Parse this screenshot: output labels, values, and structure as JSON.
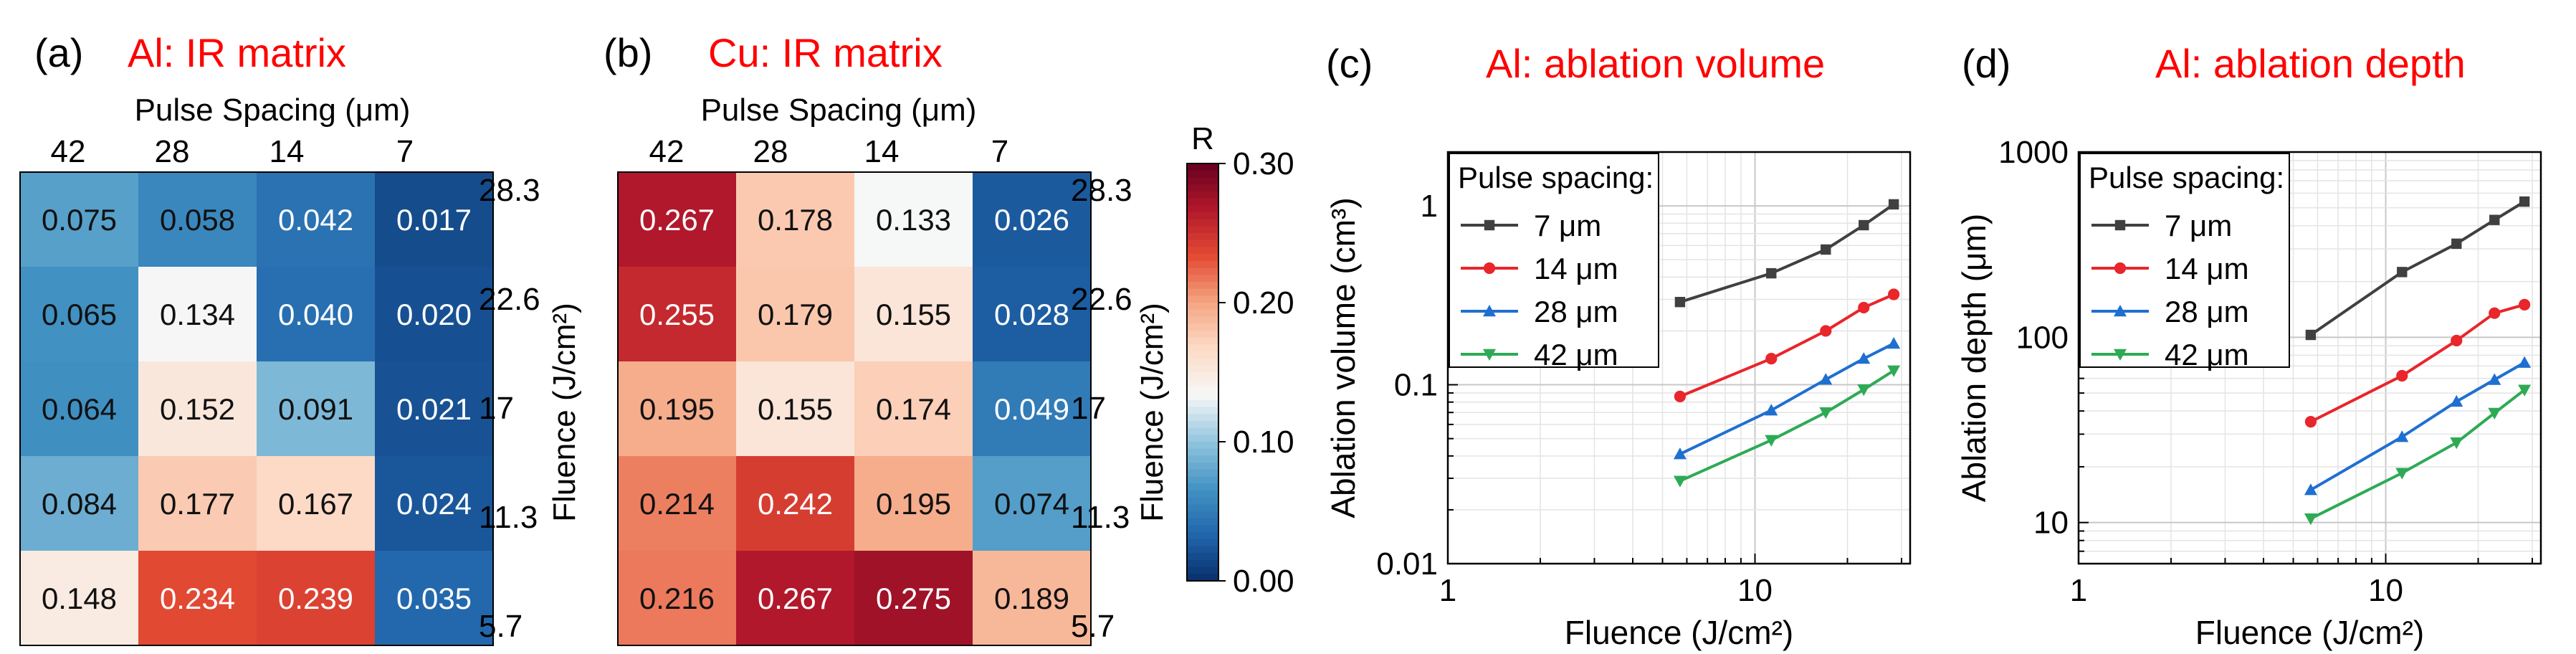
{
  "colors": {
    "title": "#ff0000",
    "cmap": [
      "#08306b",
      "#2166ac",
      "#4393c3",
      "#92c5de",
      "#f7f7f7",
      "#fddbc7",
      "#f4a582",
      "#e34a33",
      "#b2182b",
      "#67001f"
    ],
    "series": [
      "#404040",
      "#e8262b",
      "#1f6fd1",
      "#2eaa55"
    ]
  },
  "panels": [
    {
      "label": "(a)",
      "title": "Al: IR matrix",
      "xlabel": "Pulse Spacing (μm)",
      "ylabel": "Fluence (J/cm²)",
      "columns": [
        "42",
        "28",
        "14",
        "7"
      ],
      "rows": [
        "28.3",
        "22.6",
        "17",
        "11.3",
        "5.7"
      ],
      "values": [
        [
          "0.075",
          "0.058",
          "0.042",
          "0.017"
        ],
        [
          "0.065",
          "0.134",
          "0.040",
          "0.020"
        ],
        [
          "0.064",
          "0.152",
          "0.091",
          "0.021"
        ],
        [
          "0.084",
          "0.177",
          "0.167",
          "0.024"
        ],
        [
          "0.148",
          "0.234",
          "0.239",
          "0.035"
        ]
      ]
    },
    {
      "label": "(b)",
      "title": "Cu: IR matrix",
      "xlabel": "Pulse Spacing (μm)",
      "ylabel": "Fluence (J/cm²)",
      "columns": [
        "42",
        "28",
        "14",
        "7"
      ],
      "rows": [
        "28.3",
        "22.6",
        "17",
        "11.3",
        "5.7"
      ],
      "values": [
        [
          "0.267",
          "0.178",
          "0.133",
          "0.026"
        ],
        [
          "0.255",
          "0.179",
          "0.155",
          "0.028"
        ],
        [
          "0.195",
          "0.155",
          "0.174",
          "0.049"
        ],
        [
          "0.214",
          "0.242",
          "0.195",
          "0.074"
        ],
        [
          "0.216",
          "0.267",
          "0.275",
          "0.189"
        ]
      ]
    },
    {
      "label": "(c)",
      "title": "Al: ablation volume"
    },
    {
      "label": "(d)",
      "title": "Al: ablation depth"
    }
  ],
  "colorbar": {
    "label": "R",
    "min": 0.0,
    "max": 0.3,
    "ticks": [
      "0.00",
      "0.10",
      "0.20",
      "0.30"
    ]
  },
  "chart_data": [
    {
      "type": "heatmap",
      "title": "Al: IR matrix",
      "xlabel": "Pulse Spacing (μm)",
      "ylabel": "Fluence (J/cm²)",
      "x": [
        42,
        28,
        14,
        7
      ],
      "y": [
        28.3,
        22.6,
        17,
        11.3,
        5.7
      ],
      "z": [
        [
          0.075,
          0.058,
          0.042,
          0.017
        ],
        [
          0.065,
          0.134,
          0.04,
          0.02
        ],
        [
          0.064,
          0.152,
          0.091,
          0.021
        ],
        [
          0.084,
          0.177,
          0.167,
          0.024
        ],
        [
          0.148,
          0.234,
          0.239,
          0.035
        ]
      ],
      "zlim": [
        0,
        0.3
      ]
    },
    {
      "type": "heatmap",
      "title": "Cu: IR matrix",
      "xlabel": "Pulse Spacing (μm)",
      "ylabel": "Fluence (J/cm²)",
      "x": [
        42,
        28,
        14,
        7
      ],
      "y": [
        28.3,
        22.6,
        17,
        11.3,
        5.7
      ],
      "z": [
        [
          0.267,
          0.178,
          0.133,
          0.026
        ],
        [
          0.255,
          0.179,
          0.155,
          0.028
        ],
        [
          0.195,
          0.155,
          0.174,
          0.049
        ],
        [
          0.214,
          0.242,
          0.195,
          0.074
        ],
        [
          0.216,
          0.267,
          0.275,
          0.189
        ]
      ],
      "zlim": [
        0,
        0.3
      ]
    },
    {
      "type": "line",
      "title": "Al: ablation volume",
      "xlabel": "Fluence (J/cm²)",
      "ylabel": "Ablation volume (cm³)",
      "xscale": "log",
      "yscale": "log",
      "xlim": [
        1,
        32
      ],
      "ylim": [
        0.01,
        2
      ],
      "xticks": [
        1,
        10
      ],
      "xtick_labels": [
        "1",
        "10"
      ],
      "yticks": [
        0.01,
        0.1,
        1
      ],
      "ytick_labels": [
        "0.01",
        "0.1",
        "1"
      ],
      "legend_title": "Pulse spacing:",
      "legend_position": "top-left",
      "x": [
        5.7,
        11.3,
        17,
        22.6,
        28.3
      ],
      "series": [
        {
          "name": "7 μm",
          "marker": "square",
          "values": [
            0.29,
            0.42,
            0.57,
            0.78,
            1.02
          ]
        },
        {
          "name": "14 μm",
          "marker": "circle",
          "values": [
            0.086,
            0.14,
            0.2,
            0.27,
            0.32
          ]
        },
        {
          "name": "28 μm",
          "marker": "triangle-up",
          "values": [
            0.041,
            0.072,
            0.107,
            0.14,
            0.17
          ]
        },
        {
          "name": "42 μm",
          "marker": "triangle-down",
          "values": [
            0.029,
            0.049,
            0.07,
            0.094,
            0.12
          ]
        }
      ]
    },
    {
      "type": "line",
      "title": "Al: ablation depth",
      "xlabel": "Fluence (J/cm²)",
      "ylabel": "Ablation depth (μm)",
      "xscale": "log",
      "yscale": "log",
      "xlim": [
        1,
        32
      ],
      "ylim": [
        6,
        1000
      ],
      "xticks": [
        1,
        10
      ],
      "xtick_labels": [
        "1",
        "10"
      ],
      "yticks": [
        10,
        100,
        1000
      ],
      "ytick_labels": [
        "10",
        "100",
        "1000"
      ],
      "legend_title": "Pulse spacing:",
      "legend_position": "top-left",
      "x": [
        5.7,
        11.3,
        17,
        22.6,
        28.3
      ],
      "series": [
        {
          "name": "7 μm",
          "marker": "square",
          "values": [
            103,
            225,
            320,
            430,
            540
          ]
        },
        {
          "name": "14 μm",
          "marker": "circle",
          "values": [
            35,
            62,
            96,
            135,
            150
          ]
        },
        {
          "name": "28 μm",
          "marker": "triangle-up",
          "values": [
            15,
            29,
            45,
            59,
            73
          ]
        },
        {
          "name": "42 μm",
          "marker": "triangle-down",
          "values": [
            10.5,
            18.5,
            27,
            39,
            52
          ]
        }
      ]
    }
  ]
}
